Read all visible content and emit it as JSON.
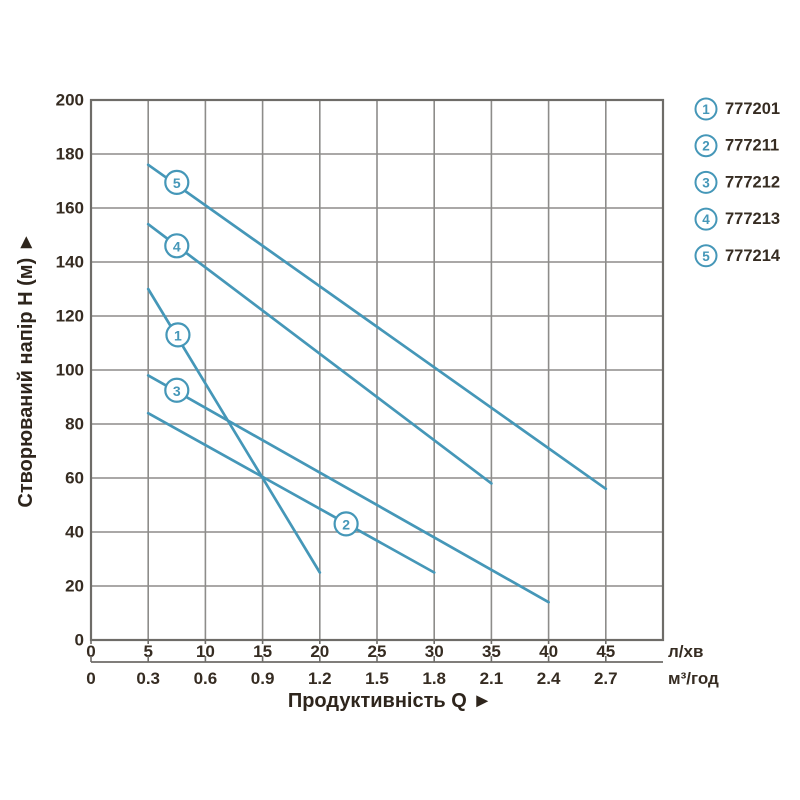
{
  "chart_data": {
    "type": "line",
    "title": "",
    "x_axis": {
      "title": "Продуктивність Q ►",
      "range_lmin": [
        0,
        50
      ],
      "primary_unit": "л/хв",
      "primary_ticks": [
        "0",
        "5",
        "10",
        "15",
        "20",
        "25",
        "30",
        "35",
        "40",
        "45"
      ],
      "secondary_unit": "м³/год",
      "secondary_ticks": [
        "0",
        "0.3",
        "0.6",
        "0.9",
        "1.2",
        "1.5",
        "1.8",
        "2.1",
        "2.4",
        "2.7"
      ],
      "tick_step_lmin": 5
    },
    "y_axis": {
      "title": "Створюваний напір Н (м) ►",
      "range_m": [
        0,
        200
      ],
      "ticks": [
        "0",
        "20",
        "40",
        "60",
        "80",
        "100",
        "120",
        "140",
        "160",
        "180",
        "200"
      ],
      "tick_step_m": 20
    },
    "grid": true,
    "legend_position": "top-right",
    "series": [
      {
        "num": "1",
        "model": "777201",
        "points_lmin_m": [
          [
            5,
            130
          ],
          [
            20,
            25
          ]
        ],
        "label_pos": [
          7.6,
          113
        ]
      },
      {
        "num": "2",
        "model": "777211",
        "points_lmin_m": [
          [
            5,
            84
          ],
          [
            30,
            25
          ]
        ],
        "label_pos": [
          22.3,
          43
        ]
      },
      {
        "num": "3",
        "model": "777212",
        "points_lmin_m": [
          [
            5,
            98
          ],
          [
            40,
            14
          ]
        ],
        "label_pos": [
          7.5,
          92.5
        ]
      },
      {
        "num": "4",
        "model": "777213",
        "points_lmin_m": [
          [
            5,
            154
          ],
          [
            35,
            58
          ]
        ],
        "label_pos": [
          7.5,
          146
        ]
      },
      {
        "num": "5",
        "model": "777214",
        "points_lmin_m": [
          [
            5,
            176
          ],
          [
            45,
            56
          ]
        ],
        "label_pos": [
          7.5,
          169.5
        ]
      }
    ],
    "legend": {
      "items": [
        {
          "symbol": "1",
          "label": "777201"
        },
        {
          "symbol": "2",
          "label": "777211"
        },
        {
          "symbol": "3",
          "label": "777212"
        },
        {
          "symbol": "4",
          "label": "777213"
        },
        {
          "symbol": "5",
          "label": "777214"
        }
      ]
    },
    "colors": {
      "series_line": "#4597b8",
      "grid_line": "#8d8c8a",
      "plot_border": "#6e6c68",
      "text": "#362c22",
      "background": "#ffffff"
    }
  }
}
